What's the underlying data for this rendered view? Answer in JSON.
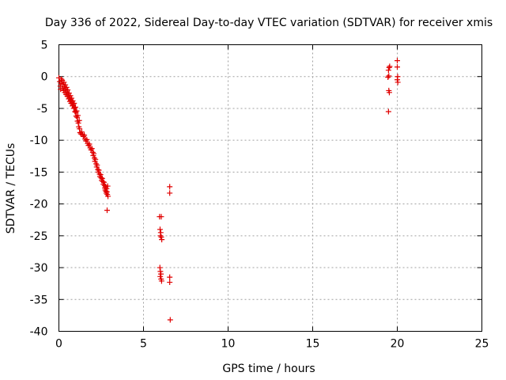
{
  "chart_data": {
    "type": "scatter",
    "title": "Day 336 of 2022, Sidereal Day-to-day VTEC variation (SDTVAR) for receiver xmis",
    "xlabel": "GPS time / hours",
    "ylabel": "SDTVAR / TECUs",
    "xlim": [
      0,
      25
    ],
    "ylim": [
      -40,
      5
    ],
    "xticks": [
      0,
      5,
      10,
      15,
      20,
      25
    ],
    "yticks": [
      5,
      0,
      -5,
      -10,
      -15,
      -20,
      -25,
      -30,
      -35,
      -40
    ],
    "xtick_labels": [
      "0",
      "5",
      "10",
      "15",
      "20",
      "25"
    ],
    "ytick_labels": [
      "5",
      "0",
      "-5",
      "-10",
      "-15",
      "-20",
      "-25",
      "-30",
      "-35",
      "-40"
    ],
    "grid": true,
    "marker": "+",
    "color": "#e00000",
    "series": [
      {
        "name": "xmis",
        "points": [
          [
            0.0,
            -0.2
          ],
          [
            0.05,
            -0.8
          ],
          [
            0.08,
            -1.5
          ],
          [
            0.1,
            -2.0
          ],
          [
            0.12,
            -1.1
          ],
          [
            0.15,
            -0.4
          ],
          [
            0.2,
            -0.6
          ],
          [
            0.22,
            -1.8
          ],
          [
            0.25,
            -1.2
          ],
          [
            0.28,
            -2.2
          ],
          [
            0.3,
            -0.9
          ],
          [
            0.33,
            -1.6
          ],
          [
            0.35,
            -2.5
          ],
          [
            0.38,
            -1.3
          ],
          [
            0.4,
            -2.0
          ],
          [
            0.42,
            -2.8
          ],
          [
            0.45,
            -1.7
          ],
          [
            0.48,
            -2.4
          ],
          [
            0.5,
            -3.1
          ],
          [
            0.52,
            -2.1
          ],
          [
            0.55,
            -2.9
          ],
          [
            0.58,
            -3.5
          ],
          [
            0.6,
            -2.6
          ],
          [
            0.63,
            -3.3
          ],
          [
            0.65,
            -3.9
          ],
          [
            0.68,
            -3.0
          ],
          [
            0.7,
            -3.7
          ],
          [
            0.72,
            -4.2
          ],
          [
            0.75,
            -3.4
          ],
          [
            0.78,
            -4.0
          ],
          [
            0.8,
            -4.6
          ],
          [
            0.82,
            -3.8
          ],
          [
            0.85,
            -4.4
          ],
          [
            0.88,
            -5.0
          ],
          [
            0.9,
            -4.2
          ],
          [
            0.92,
            -4.9
          ],
          [
            0.95,
            -5.5
          ],
          [
            0.98,
            -4.8
          ],
          [
            1.0,
            -5.6
          ],
          [
            1.02,
            -6.2
          ],
          [
            1.05,
            -5.4
          ],
          [
            1.08,
            -6.4
          ],
          [
            1.1,
            -7.0
          ],
          [
            1.12,
            -6.1
          ],
          [
            1.15,
            -7.3
          ],
          [
            1.18,
            -7.9
          ],
          [
            1.2,
            -6.9
          ],
          [
            1.22,
            -8.2
          ],
          [
            1.25,
            -8.8
          ],
          [
            1.3,
            -9.0
          ],
          [
            1.35,
            -8.7
          ],
          [
            1.4,
            -9.1
          ],
          [
            1.45,
            -9.4
          ],
          [
            1.5,
            -9.2
          ],
          [
            1.55,
            -9.8
          ],
          [
            1.6,
            -10.1
          ],
          [
            1.65,
            -9.9
          ],
          [
            1.7,
            -10.5
          ],
          [
            1.75,
            -10.8
          ],
          [
            1.8,
            -10.6
          ],
          [
            1.85,
            -11.2
          ],
          [
            1.9,
            -11.5
          ],
          [
            1.95,
            -11.3
          ],
          [
            2.0,
            -11.9
          ],
          [
            2.03,
            -12.4
          ],
          [
            2.06,
            -12.1
          ],
          [
            2.1,
            -12.8
          ],
          [
            2.13,
            -13.3
          ],
          [
            2.16,
            -13.0
          ],
          [
            2.2,
            -13.7
          ],
          [
            2.23,
            -14.2
          ],
          [
            2.26,
            -13.9
          ],
          [
            2.3,
            -14.6
          ],
          [
            2.33,
            -15.0
          ],
          [
            2.36,
            -14.7
          ],
          [
            2.4,
            -15.3
          ],
          [
            2.43,
            -15.7
          ],
          [
            2.46,
            -15.4
          ],
          [
            2.5,
            -15.9
          ],
          [
            2.53,
            -16.3
          ],
          [
            2.56,
            -16.0
          ],
          [
            2.6,
            -16.5
          ],
          [
            2.63,
            -16.9
          ],
          [
            2.66,
            -16.6
          ],
          [
            2.7,
            -17.1
          ],
          [
            2.72,
            -17.5
          ],
          [
            2.74,
            -17.8
          ],
          [
            2.76,
            -17.3
          ],
          [
            2.78,
            -18.0
          ],
          [
            2.8,
            -18.3
          ],
          [
            2.82,
            -17.6
          ],
          [
            2.84,
            -18.1
          ],
          [
            2.86,
            -18.5
          ],
          [
            2.88,
            -17.2
          ],
          [
            2.9,
            -18.8
          ],
          [
            2.85,
            -21.0
          ],
          [
            5.95,
            -22.0
          ],
          [
            6.05,
            -22.0
          ],
          [
            5.98,
            -24.0
          ],
          [
            6.02,
            -24.5
          ],
          [
            6.0,
            -25.0
          ],
          [
            6.05,
            -25.2
          ],
          [
            6.08,
            -25.6
          ],
          [
            5.97,
            -30.0
          ],
          [
            6.0,
            -30.6
          ],
          [
            6.03,
            -31.0
          ],
          [
            5.99,
            -31.4
          ],
          [
            6.04,
            -31.8
          ],
          [
            6.07,
            -32.1
          ],
          [
            6.55,
            -17.3
          ],
          [
            6.55,
            -18.3
          ],
          [
            6.55,
            -31.5
          ],
          [
            6.55,
            -32.3
          ],
          [
            6.58,
            -38.2
          ],
          [
            19.45,
            -0.1
          ],
          [
            19.5,
            0.1
          ],
          [
            19.48,
            1.0
          ],
          [
            19.52,
            1.4
          ],
          [
            19.55,
            1.6
          ],
          [
            19.5,
            -2.2
          ],
          [
            19.53,
            -2.5
          ],
          [
            19.48,
            -5.5
          ],
          [
            20.0,
            2.5
          ],
          [
            20.0,
            1.5
          ],
          [
            20.02,
            0.0
          ],
          [
            20.0,
            -0.5
          ],
          [
            20.03,
            -0.9
          ]
        ]
      }
    ]
  }
}
